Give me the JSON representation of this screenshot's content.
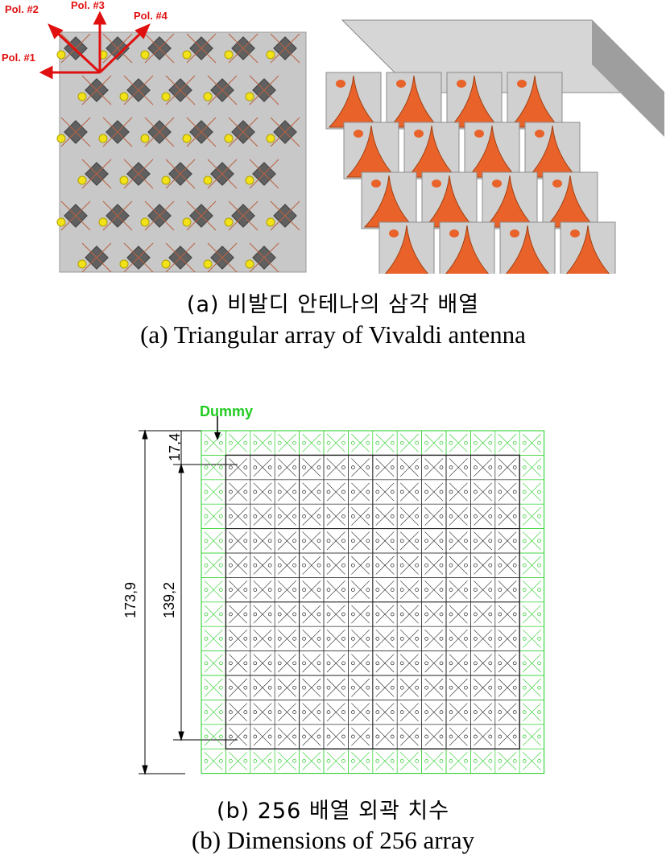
{
  "figure_a": {
    "labels": {
      "pol1": "Pol. #1",
      "pol2": "Pol. #2",
      "pol3": "Pol. #3",
      "pol4": "Pol. #4"
    },
    "caption_ko": "(a) 비발디 안테나의 삼각 배열",
    "caption_en": "(a) Triangular array of Vivaldi antenna",
    "colors": {
      "arrow": "#e01010",
      "element_fill": "#606060",
      "board": "#c8c8c8",
      "flare": "#e8622a",
      "feed": "#f2e21a"
    }
  },
  "figure_b": {
    "dummy_label": "Dummy",
    "dims": {
      "outer": "173,9",
      "inner": "139,2",
      "cell": "17,4"
    },
    "caption_ko": "(b) 256 배열 외곽 치수",
    "caption_en": "(b) Dimensions of 256 array",
    "colors": {
      "dummy": "#22cc22",
      "active": "#202020"
    }
  }
}
